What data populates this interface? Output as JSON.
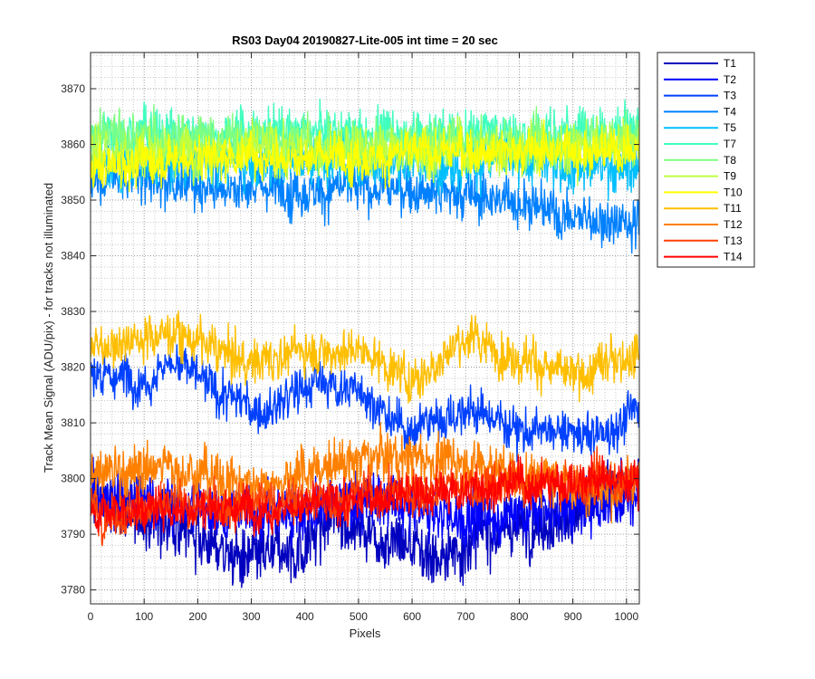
{
  "chart_data": {
    "type": "line",
    "title": "RS03 Day04 20190827-Lite-005 int time = 20 sec",
    "xlabel": "Pixels",
    "ylabel": "Track Mean Signal (ADU/pix) - for tracks not illuminated",
    "xlim": [
      0,
      1024
    ],
    "ylim": [
      3777.5,
      3876.5
    ],
    "x_ticks": [
      0,
      100,
      200,
      300,
      400,
      500,
      600,
      700,
      800,
      900,
      1000
    ],
    "y_ticks": [
      3780,
      3790,
      3800,
      3810,
      3820,
      3830,
      3840,
      3850,
      3860,
      3870
    ],
    "grid": "major and minor, dotted",
    "legend_position": "outside-right-top",
    "series": [
      {
        "name": "T1",
        "color": "#0000bf",
        "baseline": [
          [
            0,
            3796
          ],
          [
            150,
            3792
          ],
          [
            300,
            3785
          ],
          [
            380,
            3787
          ],
          [
            460,
            3793
          ],
          [
            560,
            3789
          ],
          [
            650,
            3786
          ],
          [
            760,
            3791
          ],
          [
            880,
            3793
          ],
          [
            1024,
            3799
          ]
        ],
        "noise": 5
      },
      {
        "name": "T2",
        "color": "#0000ff",
        "baseline": [
          [
            0,
            3797
          ],
          [
            200,
            3795
          ],
          [
            350,
            3794
          ],
          [
            500,
            3796
          ],
          [
            700,
            3793
          ],
          [
            900,
            3795
          ],
          [
            1024,
            3797
          ]
        ],
        "noise": 4.5
      },
      {
        "name": "T3",
        "color": "#0040ff",
        "baseline": [
          [
            0,
            3819
          ],
          [
            100,
            3818
          ],
          [
            150,
            3821
          ],
          [
            250,
            3815
          ],
          [
            320,
            3812
          ],
          [
            420,
            3817
          ],
          [
            500,
            3816
          ],
          [
            580,
            3809
          ],
          [
            700,
            3812
          ],
          [
            850,
            3808
          ],
          [
            950,
            3808
          ],
          [
            1024,
            3812
          ]
        ],
        "noise": 3.5
      },
      {
        "name": "T4",
        "color": "#0080ff",
        "baseline": [
          [
            0,
            3855
          ],
          [
            200,
            3853
          ],
          [
            400,
            3852
          ],
          [
            600,
            3852
          ],
          [
            800,
            3850
          ],
          [
            900,
            3847
          ],
          [
            1024,
            3846
          ]
        ],
        "noise": 4
      },
      {
        "name": "T5",
        "color": "#00bfff",
        "baseline": [
          [
            0,
            3857
          ],
          [
            200,
            3857
          ],
          [
            500,
            3857
          ],
          [
            800,
            3857
          ],
          [
            1024,
            3856
          ]
        ],
        "noise": 4
      },
      {
        "name": "T7",
        "color": "#40ffbf",
        "baseline": [
          [
            0,
            3862
          ],
          [
            200,
            3862
          ],
          [
            500,
            3862
          ],
          [
            800,
            3862
          ],
          [
            1024,
            3863
          ]
        ],
        "noise": 4
      },
      {
        "name": "T8",
        "color": "#80ff80",
        "baseline": [
          [
            0,
            3861
          ],
          [
            200,
            3861
          ],
          [
            500,
            3860
          ],
          [
            800,
            3860
          ],
          [
            1024,
            3861
          ]
        ],
        "noise": 4
      },
      {
        "name": "T9",
        "color": "#bfff40",
        "baseline": [
          [
            0,
            3859
          ],
          [
            200,
            3859
          ],
          [
            500,
            3859
          ],
          [
            800,
            3859
          ],
          [
            1024,
            3860
          ]
        ],
        "noise": 4
      },
      {
        "name": "T10",
        "color": "#ffff00",
        "baseline": [
          [
            0,
            3856
          ],
          [
            200,
            3858
          ],
          [
            500,
            3858
          ],
          [
            800,
            3859
          ],
          [
            1024,
            3859
          ]
        ],
        "noise": 3.5
      },
      {
        "name": "T11",
        "color": "#ffbf00",
        "baseline": [
          [
            0,
            3824
          ],
          [
            150,
            3826
          ],
          [
            300,
            3821
          ],
          [
            400,
            3823
          ],
          [
            500,
            3823
          ],
          [
            600,
            3818
          ],
          [
            700,
            3825
          ],
          [
            800,
            3822
          ],
          [
            900,
            3818
          ],
          [
            1024,
            3823
          ]
        ],
        "noise": 3.5
      },
      {
        "name": "T12",
        "color": "#ff8000",
        "baseline": [
          [
            0,
            3801
          ],
          [
            150,
            3802
          ],
          [
            300,
            3799
          ],
          [
            450,
            3802
          ],
          [
            550,
            3804
          ],
          [
            700,
            3803
          ],
          [
            850,
            3800
          ],
          [
            950,
            3798
          ],
          [
            1024,
            3800
          ]
        ],
        "noise": 4
      },
      {
        "name": "T13",
        "color": "#ff4000",
        "baseline": [
          [
            0,
            3794
          ],
          [
            200,
            3795
          ],
          [
            400,
            3796
          ],
          [
            600,
            3798
          ],
          [
            800,
            3799
          ],
          [
            1024,
            3800
          ]
        ],
        "noise": 3.5
      },
      {
        "name": "T14",
        "color": "#ff0000",
        "baseline": [
          [
            0,
            3794
          ],
          [
            200,
            3795
          ],
          [
            400,
            3795
          ],
          [
            600,
            3797
          ],
          [
            800,
            3799
          ],
          [
            1024,
            3800
          ]
        ],
        "noise": 3.2
      }
    ]
  }
}
